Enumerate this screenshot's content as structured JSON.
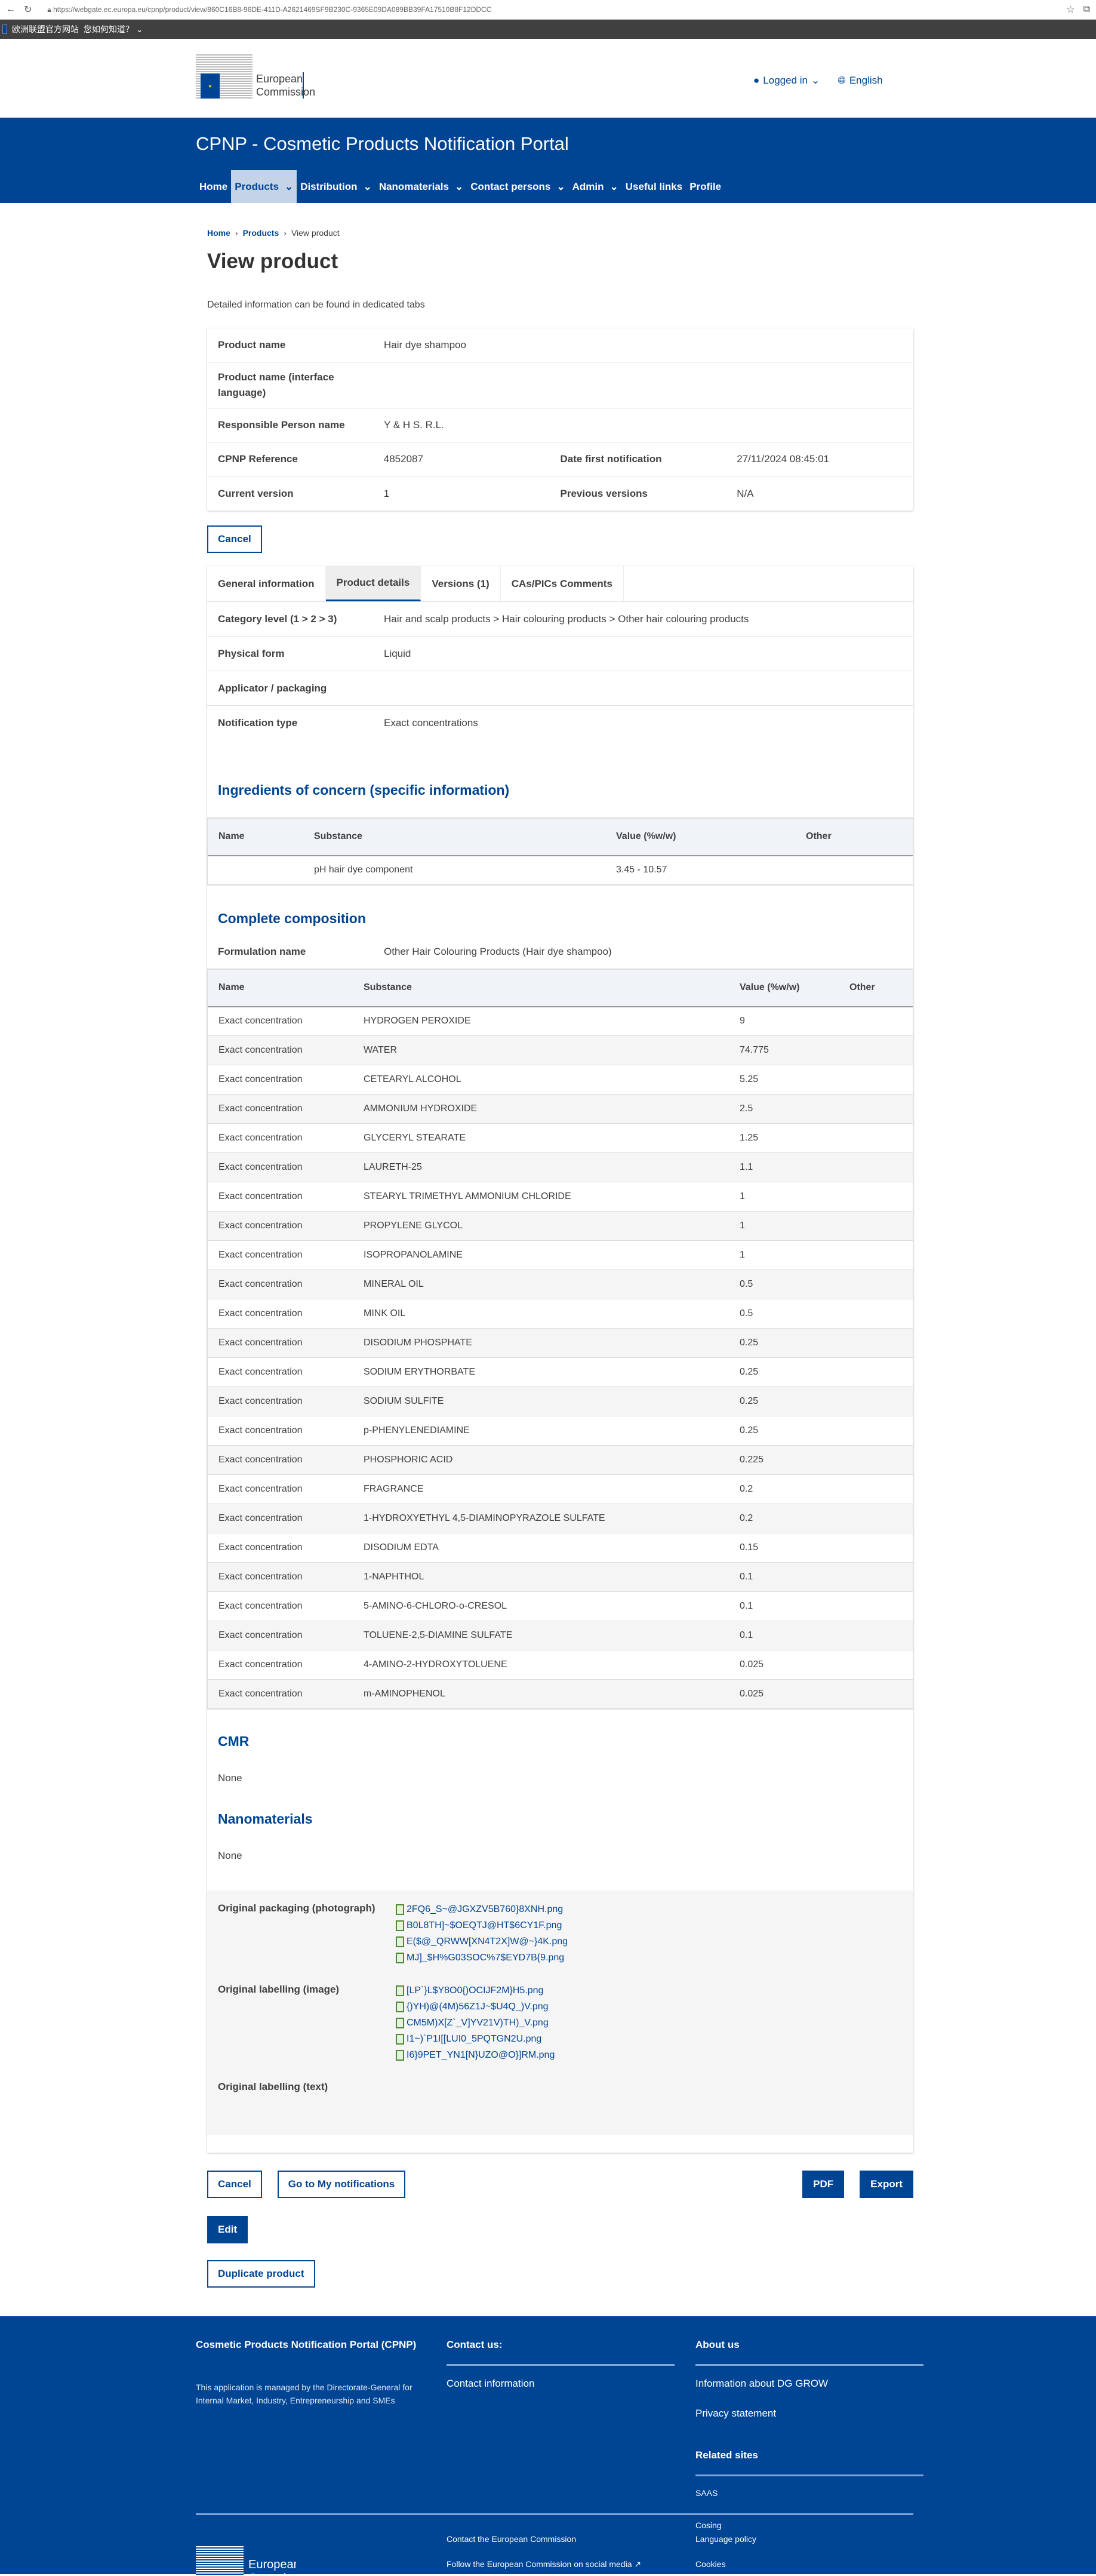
{
  "browser": {
    "url": "https://webgate.ec.europa.eu/cpnp/product/view/860C16B8-96DE-411D-A2621469SF9B230C-9365E09DA089BB39FA17510B8F12DDCC"
  },
  "globan": {
    "site": "欧洲联盟官方网站",
    "how": "您如何知道？"
  },
  "header": {
    "logo_text": "European Commission",
    "logged_in": "Logged in",
    "language": "English"
  },
  "site_title": "CPNP - Cosmetic Products Notification Portal",
  "nav": [
    {
      "label": "Home",
      "dd": false
    },
    {
      "label": "Products",
      "dd": true,
      "active": true
    },
    {
      "label": "Distribution",
      "dd": true
    },
    {
      "label": "Nanomaterials",
      "dd": true
    },
    {
      "label": "Contact persons",
      "dd": true
    },
    {
      "label": "Admin",
      "dd": true
    },
    {
      "label": "Useful links",
      "dd": false
    },
    {
      "label": "Profile",
      "dd": false
    }
  ],
  "breadcrumb": [
    "Home",
    "Products",
    "View product"
  ],
  "page_title": "View product",
  "intro": "Detailed information can be found in dedicated tabs",
  "summary": {
    "product_name_label": "Product name",
    "product_name": "Hair dye shampoo",
    "interface_label": "Product name (interface language)",
    "interface_value": "",
    "rp_label": "Responsible Person name",
    "rp": "Y & H S. R.L.",
    "ref_label": "CPNP Reference",
    "ref": "4852087",
    "date_label": "Date first notification",
    "date": "27/11/2024 08:45:01",
    "version_label": "Current version",
    "version": "1",
    "prev_label": "Previous versions",
    "prev": "N/A"
  },
  "cancel": "Cancel",
  "tabs": [
    {
      "label": "General information"
    },
    {
      "label": "Product details",
      "active": true
    },
    {
      "label": "Versions (1)"
    },
    {
      "label": "CAs/PICs Comments"
    }
  ],
  "details": [
    {
      "k": "Category level (1 > 2 > 3)",
      "v": "Hair and scalp products > Hair colouring products > Other hair colouring products"
    },
    {
      "k": "Physical form",
      "v": "Liquid"
    },
    {
      "k": "Applicator / packaging",
      "v": ""
    },
    {
      "k": "Notification type",
      "v": "Exact concentrations"
    }
  ],
  "ingredients": {
    "title": "Ingredients of concern (specific information)",
    "headers": [
      "Name",
      "Substance",
      "Value (%w/w)",
      "Other"
    ],
    "rows": [
      [
        "",
        "pH hair dye component",
        "3.45 - 10.57",
        ""
      ]
    ]
  },
  "composition": {
    "title": "Complete composition",
    "formulation_label": "Formulation name",
    "formulation": "Other Hair Colouring Products (Hair dye shampoo)",
    "headers": [
      "Name",
      "Substance",
      "Value (%w/w)",
      "Other"
    ],
    "rows": [
      [
        "Exact concentration",
        "HYDROGEN PEROXIDE",
        "9"
      ],
      [
        "Exact concentration",
        "WATER",
        "74.775"
      ],
      [
        "Exact concentration",
        "CETEARYL ALCOHOL",
        "5.25"
      ],
      [
        "Exact concentration",
        "AMMONIUM HYDROXIDE",
        "2.5"
      ],
      [
        "Exact concentration",
        "GLYCERYL STEARATE",
        "1.25"
      ],
      [
        "Exact concentration",
        "LAURETH-25",
        "1.1"
      ],
      [
        "Exact concentration",
        "STEARYL TRIMETHYL AMMONIUM CHLORIDE",
        "1"
      ],
      [
        "Exact concentration",
        "PROPYLENE GLYCOL",
        "1"
      ],
      [
        "Exact concentration",
        "ISOPROPANOLAMINE",
        "1"
      ],
      [
        "Exact concentration",
        "MINERAL OIL",
        "0.5"
      ],
      [
        "Exact concentration",
        "MINK OIL",
        "0.5"
      ],
      [
        "Exact concentration",
        "DISODIUM PHOSPHATE",
        "0.25"
      ],
      [
        "Exact concentration",
        "SODIUM ERYTHORBATE",
        "0.25"
      ],
      [
        "Exact concentration",
        "SODIUM SULFITE",
        "0.25"
      ],
      [
        "Exact concentration",
        "p-PHENYLENEDIAMINE",
        "0.25"
      ],
      [
        "Exact concentration",
        "PHOSPHORIC ACID",
        "0.225"
      ],
      [
        "Exact concentration",
        "FRAGRANCE",
        "0.2"
      ],
      [
        "Exact concentration",
        "1-HYDROXYETHYL 4,5-DIAMINOPYRAZOLE SULFATE",
        "0.2"
      ],
      [
        "Exact concentration",
        "DISODIUM EDTA",
        "0.15"
      ],
      [
        "Exact concentration",
        "1-NAPHTHOL",
        "0.1"
      ],
      [
        "Exact concentration",
        "5-AMINO-6-CHLORO-o-CRESOL",
        "0.1"
      ],
      [
        "Exact concentration",
        "TOLUENE-2,5-DIAMINE SULFATE",
        "0.1"
      ],
      [
        "Exact concentration",
        "4-AMINO-2-HYDROXYTOLUENE",
        "0.025"
      ],
      [
        "Exact concentration",
        "m-AMINOPHENOL",
        "0.025"
      ]
    ]
  },
  "cmr": {
    "title": "CMR",
    "value": "None"
  },
  "nano": {
    "title": "Nanomaterials",
    "value": "None"
  },
  "files": [
    {
      "k": "Original packaging (photograph)",
      "items": [
        "2FQ6_S~@JGXZV5B760}8XNH.png",
        "B0L8TH]~$OEQTJ@HT$6CY1F.png",
        "E($@_QRWW[XN4T2X]W@~}4K.png",
        "MJ]_$H%G03SOC%7$EYD7B{9.png"
      ]
    },
    {
      "k": "Original labelling (image)",
      "items": [
        "[LP`}L$Y8O0{)OCIJF2M}H5.png",
        "{)YH)@(4M)56Z1J~$U4Q_)V.png",
        "CM5M)X[Z`_V]YV21V)TH)_V.png",
        "I1~)`P1I[[LUI0_5PQTGN2U.png",
        "I6}9PET_YN1[N}UZO@O}]RM.png"
      ]
    },
    {
      "k": "Original labelling (text)",
      "items": []
    }
  ],
  "actions": {
    "cancel": "Cancel",
    "my_notifications": "Go to My notifications",
    "pdf": "PDF",
    "export": "Export",
    "edit": "Edit",
    "duplicate": "Duplicate product"
  },
  "footer": {
    "title": "Cosmetic Products Notification Portal (CPNP)",
    "desc": "This application is managed by the Directorate-General for Internal Market, Industry, Entrepreneurship and SMEs",
    "contact_title": "Contact us:",
    "contact_info": "Contact information",
    "about_title": "About us",
    "about_links": [
      "Information about DG GROW",
      "Privacy statement"
    ],
    "related_title": "Related sites",
    "related_links": [
      "SAAS",
      "Cosing"
    ],
    "bottom_mid": [
      "Contact the European Commission",
      "Follow the European Commission on social media"
    ],
    "bottom_right": [
      "Language policy",
      "Cookies"
    ],
    "logo_text": "European Commission"
  },
  "colors": {
    "brand": "#004494",
    "nav_active": "#c4d3e6",
    "file_icon": "#4a8a3a"
  }
}
